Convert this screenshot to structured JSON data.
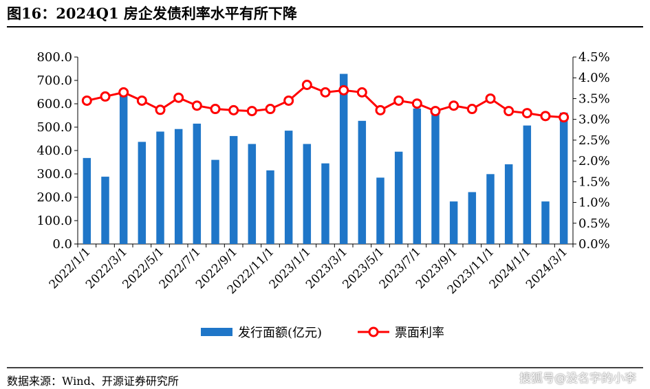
{
  "title": "图16：2024Q1 房企发债利率水平有所下降",
  "source": "数据来源：Wind、开源证券研究所",
  "watermark": "搜狐号@没名字的小李",
  "colors": {
    "bar": "#1f76c8",
    "line": "#ff0000",
    "marker_fill": "#ffffff",
    "axis": "#000000"
  },
  "chart_data": {
    "type": "bar+line",
    "categories": [
      "2022/1/1",
      "2022/2/1",
      "2022/3/1",
      "2022/4/1",
      "2022/5/1",
      "2022/6/1",
      "2022/7/1",
      "2022/8/1",
      "2022/9/1",
      "2022/10/1",
      "2022/11/1",
      "2022/12/1",
      "2023/1/1",
      "2023/2/1",
      "2023/3/1",
      "2023/4/1",
      "2023/5/1",
      "2023/6/1",
      "2023/7/1",
      "2023/8/1",
      "2023/9/1",
      "2023/10/1",
      "2023/11/1",
      "2023/12/1",
      "2024/1/1",
      "2024/2/1",
      "2024/3/1"
    ],
    "x_tick_labels": [
      "2022/1/1",
      "2022/3/1",
      "2022/5/1",
      "2022/7/1",
      "2022/9/1",
      "2022/11/1",
      "2023/1/1",
      "2023/3/1",
      "2023/5/1",
      "2023/7/1",
      "2023/9/1",
      "2023/11/1",
      "2024/1/1",
      "2024/3/1"
    ],
    "series": [
      {
        "name": "发行面额(亿元)",
        "type": "bar",
        "axis": "left",
        "values": [
          368,
          288,
          650,
          437,
          481,
          492,
          515,
          360,
          462,
          428,
          315,
          485,
          428,
          345,
          728,
          527,
          284,
          395,
          580,
          567,
          182,
          222,
          299,
          341,
          507,
          182,
          562
        ]
      },
      {
        "name": "票面利率",
        "type": "line",
        "axis": "right",
        "values": [
          3.45,
          3.55,
          3.65,
          3.45,
          3.23,
          3.52,
          3.33,
          3.25,
          3.22,
          3.2,
          3.25,
          3.45,
          3.83,
          3.65,
          3.7,
          3.65,
          3.22,
          3.45,
          3.38,
          3.2,
          3.33,
          3.25,
          3.5,
          3.2,
          3.15,
          3.08,
          3.05
        ]
      }
    ],
    "y_left": {
      "min": 0,
      "max": 800,
      "ticks": [
        "0.0",
        "100.0",
        "200.0",
        "300.0",
        "400.0",
        "500.0",
        "600.0",
        "700.0",
        "800.0"
      ]
    },
    "y_right": {
      "min": 0,
      "max": 4.5,
      "ticks": [
        "0.0%",
        "0.5%",
        "1.0%",
        "1.5%",
        "2.0%",
        "2.5%",
        "3.0%",
        "3.5%",
        "4.0%",
        "4.5%"
      ]
    },
    "legend_position": "bottom",
    "grid": false
  }
}
